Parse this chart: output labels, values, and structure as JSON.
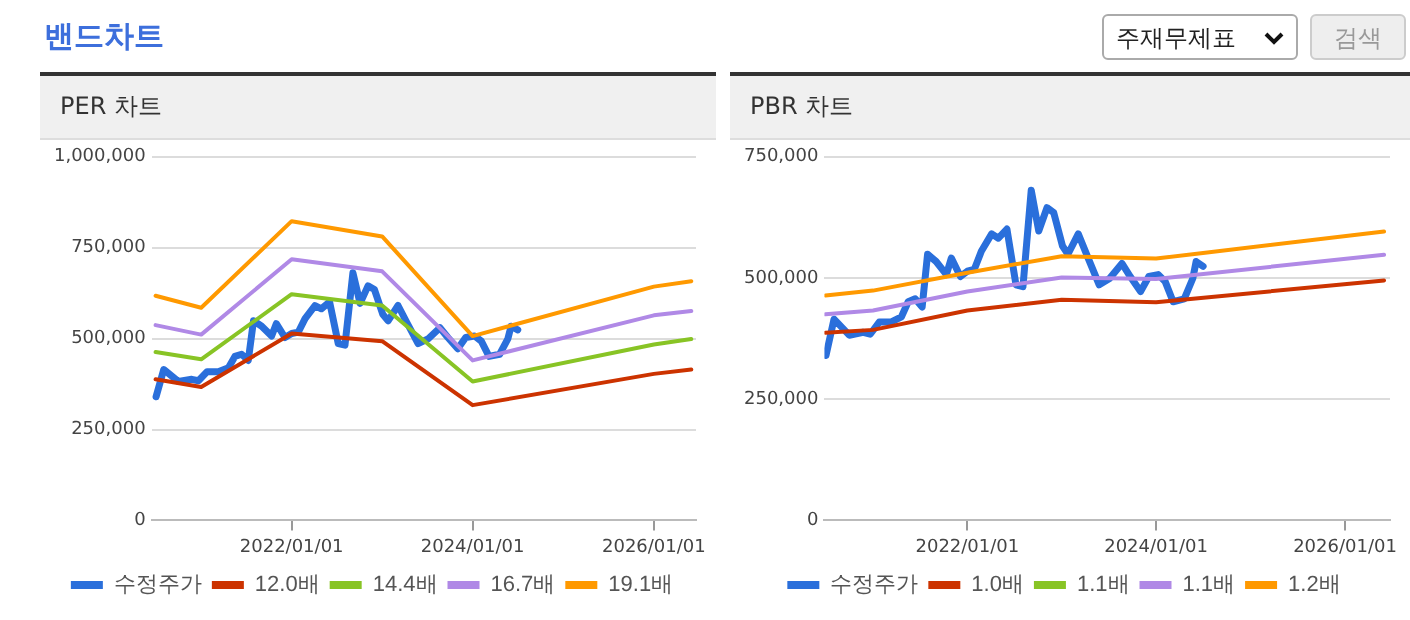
{
  "chart_data": [
    {
      "type": "line",
      "title": "PER 차트",
      "annotations": [
        "밴드차트",
        "주재무제표",
        "검색"
      ],
      "grid": "y",
      "legend": "bottom",
      "marker": "none",
      "line_style": "solid",
      "xlim": [
        "2020-06-15",
        "2026-06-20"
      ],
      "ylim": [
        0,
        1000000
      ],
      "xticks": [
        {
          "value": "2022-01-01",
          "label": "2022/01/01"
        },
        {
          "value": "2024-01-01",
          "label": "2024/01/01"
        },
        {
          "value": "2026-01-01",
          "label": "2026/01/01"
        }
      ],
      "yticks": [
        {
          "value": 0,
          "label": "0"
        },
        {
          "value": 250000,
          "label": "250,000"
        },
        {
          "value": 500000,
          "label": "500,000"
        },
        {
          "value": 750000,
          "label": "750,000"
        },
        {
          "value": 1000000,
          "label": "1,000,000"
        }
      ],
      "series": [
        {
          "name": "수정주가",
          "color": "#2a6fdb",
          "x": [
            "2020-07-03",
            "2020-08-03",
            "2020-10-01",
            "2020-11-24",
            "2020-12-21",
            "2021-01-25",
            "2021-03-11",
            "2021-04-21",
            "2021-05-17",
            "2021-06-13",
            "2021-07-10",
            "2021-07-31",
            "2021-09-02",
            "2021-10-12",
            "2021-10-31",
            "2021-12-05",
            "2022-01-01",
            "2022-01-28",
            "2022-02-24",
            "2022-04-05",
            "2022-05-01",
            "2022-06-03",
            "2022-07-08",
            "2022-08-04",
            "2022-09-05",
            "2022-10-04",
            "2022-11-05",
            "2022-12-01",
            "2023-01-04",
            "2023-01-25",
            "2023-03-06",
            "2023-04-10",
            "2023-05-26",
            "2023-07-05",
            "2023-08-22",
            "2023-09-23",
            "2023-11-02",
            "2023-12-04",
            "2024-01-09",
            "2024-02-05",
            "2024-03-07",
            "2024-04-19",
            "2024-05-22",
            "2024-06-04",
            "2024-07-01"
          ],
          "values": [
            340000,
            415000,
            382000,
            388000,
            384000,
            409000,
            409000,
            420000,
            451000,
            457000,
            440000,
            549000,
            534000,
            507000,
            541000,
            503000,
            514000,
            518000,
            555000,
            591000,
            582000,
            601000,
            486000,
            482000,
            681000,
            597000,
            645000,
            635000,
            566000,
            549000,
            591000,
            545000,
            486000,
            499000,
            530000,
            503000,
            472000,
            503000,
            507000,
            493000,
            451000,
            457000,
            499000,
            534000,
            524000
          ]
        },
        {
          "name": "12.0배",
          "color": "#cc3300",
          "x": [
            "2020-07-01",
            "2021-01-01",
            "2022-01-01",
            "2023-01-01",
            "2024-01-01",
            "2026-01-01",
            "2026-06-01"
          ],
          "values": [
            388000,
            367000,
            514000,
            493000,
            317000,
            403000,
            415000
          ]
        },
        {
          "name": "14.4배",
          "color": "#88c425",
          "x": [
            "2020-07-01",
            "2021-01-01",
            "2022-01-01",
            "2023-01-01",
            "2024-01-01",
            "2026-01-01",
            "2026-06-01"
          ],
          "values": [
            463000,
            443000,
            622000,
            591000,
            382000,
            484000,
            499000
          ]
        },
        {
          "name": "16.7배",
          "color": "#b089e6",
          "x": [
            "2020-07-01",
            "2021-01-01",
            "2022-01-01",
            "2023-01-01",
            "2024-01-01",
            "2026-01-01",
            "2026-06-01"
          ],
          "values": [
            537000,
            511000,
            718000,
            685000,
            440000,
            564000,
            576000
          ]
        },
        {
          "name": "19.1배",
          "color": "#ff9900",
          "x": [
            "2020-07-01",
            "2021-01-01",
            "2022-01-01",
            "2023-01-01",
            "2024-01-01",
            "2026-01-01",
            "2026-06-01"
          ],
          "values": [
            618000,
            585000,
            823000,
            781000,
            507000,
            643000,
            658000
          ]
        }
      ]
    },
    {
      "type": "line",
      "title": "PBR 차트",
      "grid": "y",
      "legend": "bottom",
      "marker": "none",
      "line_style": "solid",
      "xlim": [
        "2020-06-27",
        "2026-06-24"
      ],
      "ylim": [
        0,
        750000
      ],
      "xticks": [
        {
          "value": "2022-01-01",
          "label": "2022/01/01"
        },
        {
          "value": "2024-01-01",
          "label": "2024/01/01"
        },
        {
          "value": "2026-01-01",
          "label": "2026/01/01"
        }
      ],
      "yticks": [
        {
          "value": 0,
          "label": "0"
        },
        {
          "value": 250000,
          "label": "250,000"
        },
        {
          "value": 500000,
          "label": "500,000"
        },
        {
          "value": 750000,
          "label": "750,000"
        }
      ],
      "series": [
        {
          "name": "수정주가",
          "color": "#2a6fdb",
          "x": [
            "2020-07-03",
            "2020-08-03",
            "2020-10-01",
            "2020-11-24",
            "2020-12-21",
            "2021-01-25",
            "2021-03-11",
            "2021-04-21",
            "2021-05-17",
            "2021-06-13",
            "2021-07-10",
            "2021-07-31",
            "2021-09-02",
            "2021-10-12",
            "2021-10-31",
            "2021-12-05",
            "2022-01-01",
            "2022-01-28",
            "2022-02-24",
            "2022-04-05",
            "2022-05-01",
            "2022-06-03",
            "2022-07-08",
            "2022-08-04",
            "2022-09-05",
            "2022-10-04",
            "2022-11-05",
            "2022-12-01",
            "2023-01-04",
            "2023-01-25",
            "2023-03-06",
            "2023-04-10",
            "2023-05-26",
            "2023-07-05",
            "2023-08-22",
            "2023-09-23",
            "2023-11-02",
            "2023-12-04",
            "2024-01-09",
            "2024-02-05",
            "2024-03-07",
            "2024-04-19",
            "2024-05-22",
            "2024-06-04",
            "2024-07-01"
          ],
          "values": [
            340000,
            415000,
            382000,
            388000,
            384000,
            409000,
            409000,
            420000,
            451000,
            457000,
            440000,
            549000,
            534000,
            507000,
            541000,
            503000,
            514000,
            518000,
            555000,
            591000,
            582000,
            601000,
            486000,
            482000,
            681000,
            597000,
            645000,
            635000,
            566000,
            549000,
            591000,
            545000,
            486000,
            499000,
            530000,
            503000,
            472000,
            503000,
            507000,
            493000,
            451000,
            457000,
            499000,
            534000,
            524000
          ]
        },
        {
          "name": "1.0배",
          "color": "#cc3300",
          "x": [
            "2020-07-01",
            "2021-01-01",
            "2022-01-01",
            "2023-01-01",
            "2024-01-01",
            "2026-06-01"
          ],
          "values": [
            387000,
            393000,
            433000,
            455000,
            450000,
            495000
          ]
        },
        {
          "name": "1.1배",
          "color": "#88c425",
          "values": [
            null,
            null,
            null,
            null,
            null,
            null
          ]
        },
        {
          "name": "1.1배",
          "color": "#b089e6",
          "x": [
            "2020-07-01",
            "2021-01-01",
            "2022-01-01",
            "2023-01-01",
            "2024-01-01",
            "2026-06-01"
          ],
          "values": [
            425000,
            433000,
            472000,
            501000,
            498000,
            548000
          ]
        },
        {
          "name": "1.2배",
          "color": "#ff9900",
          "x": [
            "2020-07-01",
            "2021-01-01",
            "2022-01-01",
            "2023-01-01",
            "2024-01-01",
            "2026-06-01"
          ],
          "values": [
            464000,
            474000,
            511000,
            545000,
            540000,
            596000
          ]
        }
      ]
    }
  ]
}
